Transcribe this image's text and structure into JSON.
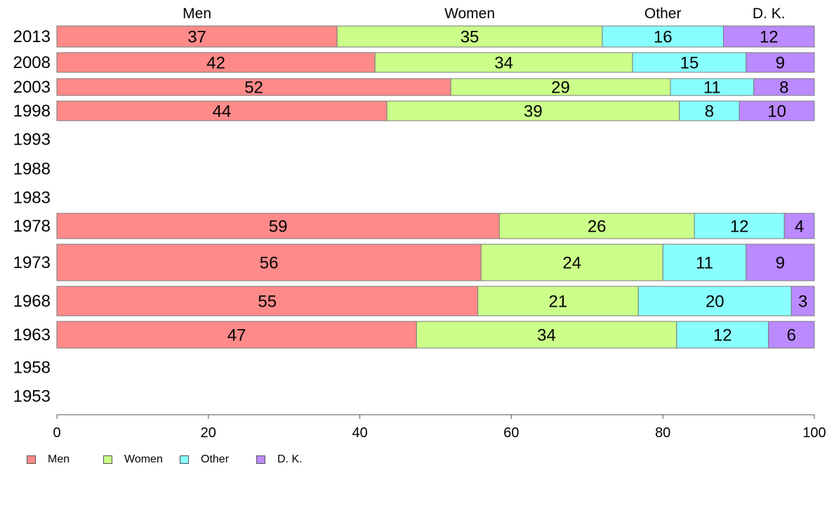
{
  "chart_data": {
    "type": "bar",
    "orientation": "horizontal",
    "stacked": true,
    "categories": [
      "2013",
      "2008",
      "2003",
      "1998",
      "1993",
      "1988",
      "1983",
      "1978",
      "1973",
      "1968",
      "1963",
      "1958",
      "1953"
    ],
    "series": [
      {
        "name": "Men",
        "color": "#fe8a89",
        "values": [
          37,
          42,
          52,
          44,
          null,
          null,
          null,
          59,
          56,
          55,
          47,
          null,
          null
        ]
      },
      {
        "name": "Women",
        "color": "#cbff8a",
        "values": [
          35,
          34,
          29,
          39,
          null,
          null,
          null,
          26,
          24,
          21,
          34,
          null,
          null
        ]
      },
      {
        "name": "Other",
        "color": "#88feff",
        "values": [
          16,
          15,
          11,
          8,
          null,
          null,
          null,
          12,
          11,
          20,
          12,
          null,
          null
        ]
      },
      {
        "name": "D. K.",
        "color": "#ba8afe",
        "values": [
          12,
          9,
          8,
          10,
          null,
          null,
          null,
          4,
          9,
          3,
          6,
          null,
          null
        ]
      }
    ],
    "bar_totals": [
      100,
      100,
      100,
      100,
      null,
      null,
      null,
      101,
      100,
      99,
      99,
      null,
      null
    ],
    "top_labels": [
      "Men",
      "Women",
      "Other",
      "D. K."
    ],
    "x_ticks": [
      "0",
      "20",
      "40",
      "60",
      "80",
      "100"
    ],
    "xlim": [
      0,
      100
    ],
    "grid": false,
    "legend": {
      "placement": "bottom-left",
      "items": [
        "Men",
        "Women",
        "Other",
        "D. K."
      ]
    }
  }
}
